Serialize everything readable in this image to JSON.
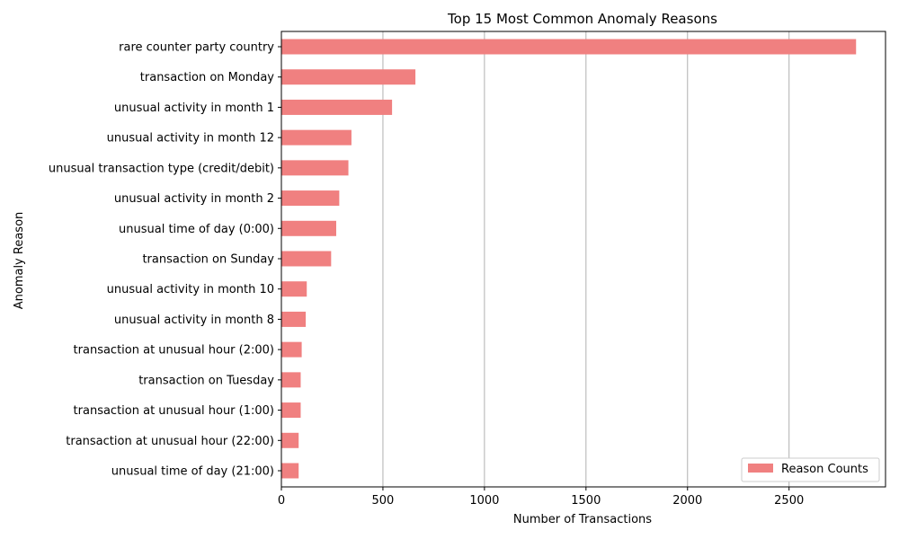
{
  "chart_data": {
    "type": "bar",
    "orientation": "horizontal",
    "title": "Top 15 Most Common Anomaly Reasons",
    "xlabel": "Number of Transactions",
    "ylabel": "Anomaly Reason",
    "xlim": [
      0,
      2975
    ],
    "xticks": [
      0,
      500,
      1000,
      1500,
      2000,
      2500
    ],
    "grid": "vertical",
    "legend_position": "lower-right",
    "bar_color": "#f08080",
    "categories": [
      "rare counter party country",
      "transaction on Monday",
      "unusual activity in month 1",
      "unusual activity in month 12",
      "unusual transaction type (credit/debit)",
      "unusual activity in month 2",
      "unusual time of day (0:00)",
      "transaction on Sunday",
      "unusual activity in month 10",
      "unusual activity in month 8",
      "transaction at unusual hour (2:00)",
      "transaction on Tuesday",
      "transaction at unusual hour (1:00)",
      "transaction at unusual hour (22:00)",
      "unusual time of day (21:00)"
    ],
    "series": [
      {
        "name": "Reason Counts",
        "values": [
          2830,
          660,
          545,
          345,
          330,
          285,
          270,
          245,
          125,
          120,
          100,
          95,
          95,
          85,
          85
        ]
      }
    ]
  }
}
